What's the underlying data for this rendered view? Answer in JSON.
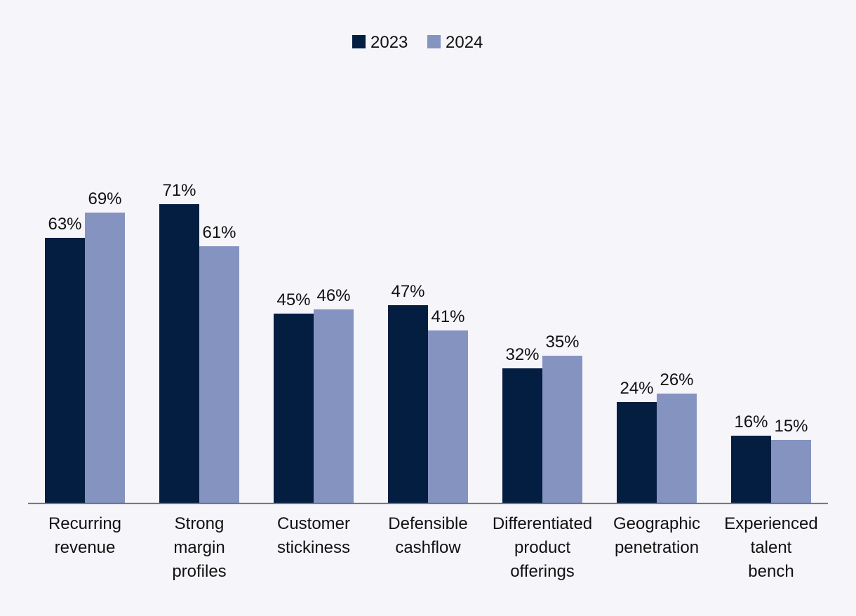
{
  "chart_data": {
    "type": "bar",
    "title": "",
    "xlabel": "",
    "ylabel": "",
    "ylim": [
      0,
      75
    ],
    "grid": false,
    "legend_position": "top-center",
    "categories": [
      [
        "Recurring",
        "revenue"
      ],
      [
        "Strong",
        "margin",
        "profiles"
      ],
      [
        "Customer",
        "stickiness"
      ],
      [
        "Defensible",
        "cashflow"
      ],
      [
        "Differentiated",
        "product",
        "offerings"
      ],
      [
        "Geographic",
        "penetration"
      ],
      [
        "Experienced",
        "talent",
        "bench"
      ]
    ],
    "series": [
      {
        "name": "2023",
        "color": "#041e42",
        "values": [
          63,
          71,
          45,
          47,
          32,
          24,
          16
        ],
        "labels": [
          "63%",
          "71%",
          "45%",
          "47%",
          "32%",
          "24%",
          "16%"
        ]
      },
      {
        "name": "2024",
        "color": "#8593c1",
        "values": [
          69,
          61,
          46,
          41,
          35,
          26,
          15
        ],
        "labels": [
          "69%",
          "61%",
          "46%",
          "41%",
          "35%",
          "26%",
          "15%"
        ]
      }
    ],
    "axis_color": "#666666"
  }
}
